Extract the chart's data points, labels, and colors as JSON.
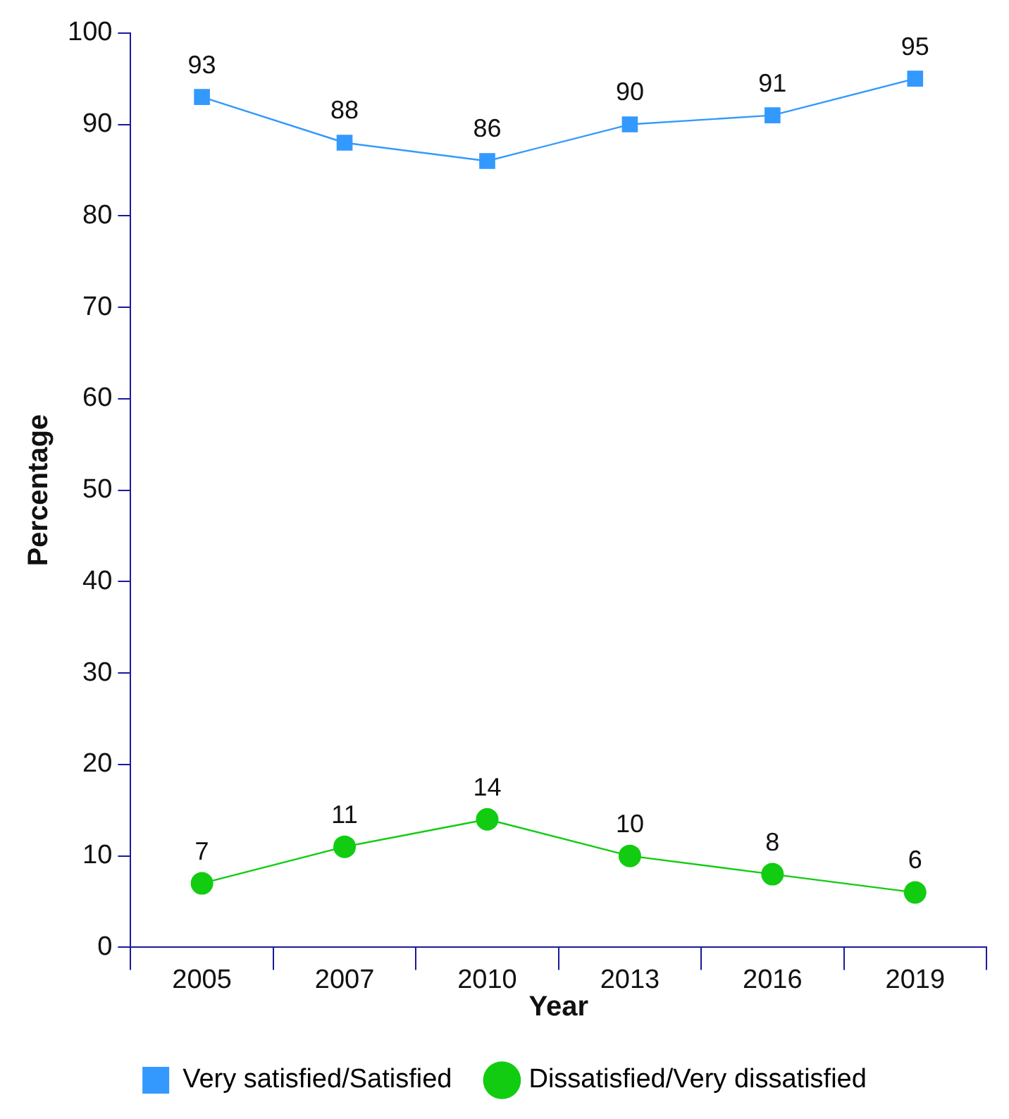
{
  "chart_data": {
    "type": "line",
    "xlabel": "Year",
    "ylabel": "Percentage",
    "categories": [
      "2005",
      "2007",
      "2010",
      "2013",
      "2016",
      "2019"
    ],
    "series": [
      {
        "name": "Very satisfied/Satisfied",
        "color": "#3399ff",
        "marker": "square",
        "values": [
          93,
          88,
          86,
          90,
          91,
          95
        ]
      },
      {
        "name": "Dissatisfied/Very dissatisfied",
        "color": "#11cc11",
        "marker": "circle",
        "values": [
          7,
          11,
          14,
          10,
          8,
          6
        ]
      }
    ],
    "ylim": [
      0,
      100
    ],
    "yticks": [
      0,
      10,
      20,
      30,
      40,
      50,
      60,
      70,
      80,
      90,
      100
    ],
    "grid": false,
    "legend": "bottom",
    "data_labels": true
  }
}
